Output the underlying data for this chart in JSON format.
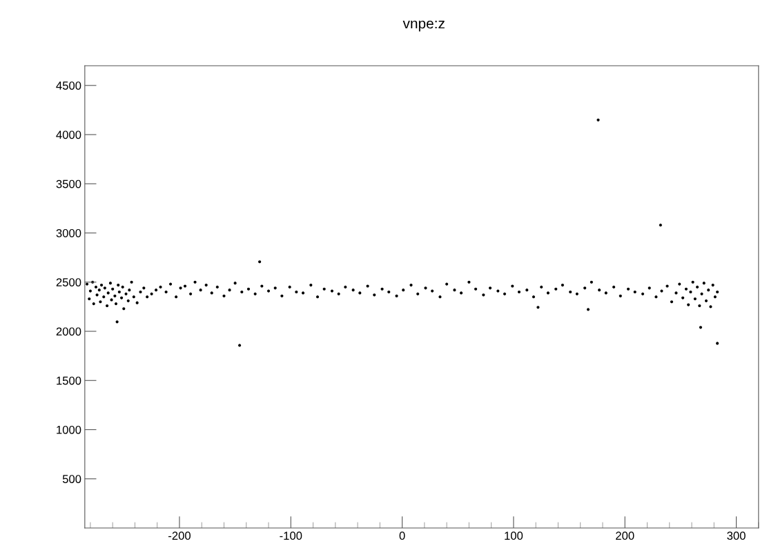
{
  "chart_data": {
    "type": "scatter",
    "title": "vnpe:z",
    "marker": "circle",
    "grid": false,
    "xlim": [
      -285,
      320
    ],
    "xticks": [
      -200,
      -100,
      0,
      100,
      200,
      300
    ],
    "ylim": [
      0,
      4700
    ],
    "yticks": [
      500,
      1000,
      1500,
      2000,
      2500,
      3000,
      3500,
      4000,
      4500
    ],
    "series": [
      {
        "color": "#000000",
        "x": [
          -283,
          -281,
          -280,
          -278,
          -277,
          -275,
          -274,
          -272,
          -271,
          -270,
          -268,
          -267,
          -265,
          -264,
          -262,
          -261,
          -260,
          -258,
          -257,
          -255,
          -254,
          -252,
          -251,
          -250,
          -248,
          -246,
          -245,
          -243,
          -241,
          -238,
          -235,
          -232,
          -229,
          -225,
          -221,
          -217,
          -212,
          -208,
          -203,
          -199,
          -195,
          -190,
          -186,
          -181,
          -176,
          -171,
          -166,
          -160,
          -155,
          -150,
          -144,
          -138,
          -132,
          -126,
          -120,
          -114,
          -108,
          -101,
          -95,
          -89,
          -82,
          -76,
          -70,
          -63,
          -57,
          -51,
          -44,
          -38,
          -31,
          -25,
          -18,
          -12,
          -5,
          1,
          8,
          14,
          21,
          27,
          34,
          40,
          47,
          53,
          60,
          66,
          73,
          79,
          86,
          92,
          99,
          105,
          112,
          118,
          125,
          131,
          138,
          144,
          151,
          157,
          164,
          170,
          177,
          183,
          190,
          196,
          203,
          209,
          216,
          222,
          228,
          233,
          238,
          242,
          246,
          249,
          252,
          255,
          257,
          259,
          261,
          263,
          265,
          267,
          269,
          271,
          273,
          275,
          277,
          279,
          281,
          283,
          -256,
          -146,
          -128,
          122,
          167,
          176,
          232,
          268,
          283
        ],
        "values": [
          2480,
          2330,
          2410,
          2500,
          2280,
          2450,
          2370,
          2420,
          2300,
          2470,
          2350,
          2440,
          2260,
          2390,
          2490,
          2320,
          2430,
          2360,
          2280,
          2470,
          2400,
          2340,
          2450,
          2230,
          2380,
          2310,
          2420,
          2500,
          2350,
          2290,
          2400,
          2440,
          2350,
          2380,
          2420,
          2450,
          2400,
          2480,
          2350,
          2440,
          2460,
          2380,
          2500,
          2420,
          2470,
          2390,
          2450,
          2360,
          2420,
          2490,
          2400,
          2430,
          2380,
          2460,
          2410,
          2440,
          2360,
          2450,
          2400,
          2390,
          2470,
          2350,
          2430,
          2410,
          2380,
          2450,
          2420,
          2390,
          2460,
          2370,
          2430,
          2400,
          2360,
          2420,
          2470,
          2380,
          2440,
          2410,
          2350,
          2480,
          2420,
          2390,
          2500,
          2430,
          2370,
          2440,
          2410,
          2380,
          2460,
          2400,
          2420,
          2350,
          2450,
          2390,
          2430,
          2470,
          2400,
          2380,
          2440,
          2500,
          2420,
          2390,
          2450,
          2360,
          2430,
          2400,
          2380,
          2440,
          2350,
          2410,
          2460,
          2300,
          2390,
          2480,
          2340,
          2430,
          2270,
          2400,
          2500,
          2330,
          2450,
          2260,
          2380,
          2490,
          2310,
          2420,
          2250,
          2470,
          2350,
          2400,
          2096,
          1857,
          2707,
          2244,
          2222,
          4149,
          3080,
          2040,
          1878
        ]
      }
    ]
  }
}
